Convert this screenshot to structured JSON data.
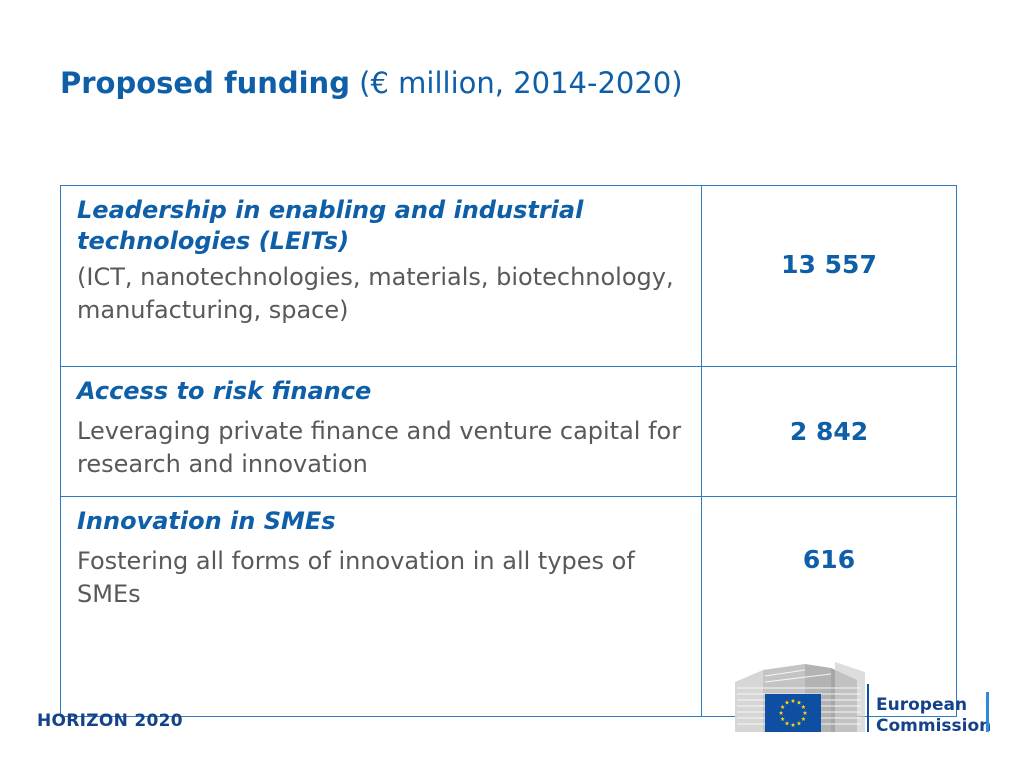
{
  "slide": {
    "title_bold": "Proposed funding",
    "title_rest": " (€ million, 2014-2020)"
  },
  "table": {
    "rows": [
      {
        "title": "Leadership in enabling and industrial technologies (LEITs)",
        "description": "(ICT, nanotechnologies, materials, biotechnology, manufacturing, space)",
        "amount": "13 557"
      },
      {
        "title": "Access to risk finance",
        "description": "Leveraging private finance and venture capital for research and innovation",
        "amount": "2 842"
      },
      {
        "title": "Innovation in SMEs",
        "description": "Fostering all forms of innovation in all types of SMEs",
        "amount": "616"
      }
    ]
  },
  "footer": {
    "program": "HORIZON 2020",
    "logo_line1": "European",
    "logo_line2": "Commission"
  },
  "colors": {
    "accent_blue": "#0E5EA8",
    "border_blue": "#2E7CC0",
    "body_gray": "#595959",
    "eu_flag_blue": "#0E4FA3",
    "eu_star_yellow": "#FFD700"
  }
}
